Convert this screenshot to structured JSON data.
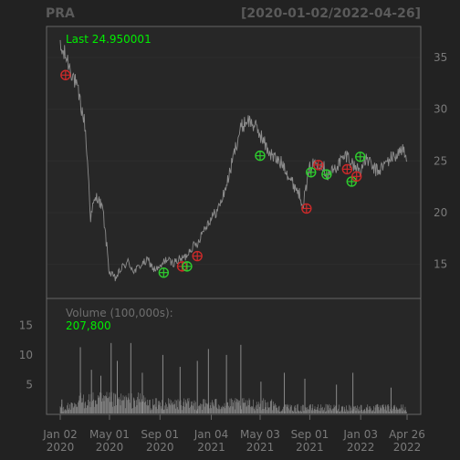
{
  "header": {
    "symbol": "PRA",
    "date_range": "[2020-01-02/2022-04-26]"
  },
  "colors": {
    "background": "#222222",
    "panel": "#272727",
    "border": "#666666",
    "price_line": "#8c8c8c",
    "volume_bars": "#8a8a8a",
    "label_green": "#00ee00",
    "marker_green": "#2ecc2e",
    "marker_red": "#cc2a2a"
  },
  "chart_data": {
    "type": "line",
    "title": "PRA",
    "subtitle": "[2020-01-02/2022-04-26]",
    "price_panel": {
      "y_ticks": [
        15,
        20,
        25,
        30,
        35
      ],
      "ylim": [
        11.7,
        38.0
      ],
      "last_label": "Last 24.950001",
      "series": {
        "name": "Close",
        "x": [
          "2020-01-02",
          "2020-01-17",
          "2020-02-03",
          "2020-02-18",
          "2020-03-02",
          "2020-03-10",
          "2020-03-16",
          "2020-03-23",
          "2020-04-01",
          "2020-04-15",
          "2020-05-01",
          "2020-05-15",
          "2020-06-01",
          "2020-06-15",
          "2020-07-01",
          "2020-07-15",
          "2020-08-03",
          "2020-08-17",
          "2020-09-01",
          "2020-09-15",
          "2020-10-01",
          "2020-10-15",
          "2020-11-02",
          "2020-11-16",
          "2020-12-01",
          "2020-12-15",
          "2021-01-04",
          "2021-01-19",
          "2021-02-01",
          "2021-02-16",
          "2021-03-01",
          "2021-03-15",
          "2021-04-01",
          "2021-04-15",
          "2021-05-03",
          "2021-05-17",
          "2021-06-01",
          "2021-06-15",
          "2021-07-01",
          "2021-07-15",
          "2021-08-02",
          "2021-08-16",
          "2021-09-01",
          "2021-09-15",
          "2021-10-01",
          "2021-10-15",
          "2021-11-01",
          "2021-11-15",
          "2021-12-01",
          "2021-12-15",
          "2022-01-03",
          "2022-01-18",
          "2022-02-01",
          "2022-02-15",
          "2022-03-01",
          "2022-03-15",
          "2022-04-01",
          "2022-04-14",
          "2022-04-26"
        ],
        "values": [
          35.8,
          35.0,
          33.2,
          31.0,
          28.5,
          24.0,
          19.5,
          20.8,
          21.6,
          20.2,
          14.2,
          13.6,
          14.7,
          15.2,
          14.3,
          14.9,
          15.4,
          14.5,
          14.6,
          15.5,
          15.1,
          15.4,
          15.7,
          16.6,
          17.0,
          18.3,
          19.5,
          20.2,
          21.5,
          23.5,
          25.8,
          28.0,
          29.0,
          28.6,
          27.6,
          26.4,
          25.5,
          25.0,
          24.6,
          23.2,
          22.2,
          20.9,
          24.3,
          24.9,
          24.7,
          23.6,
          24.2,
          25.0,
          25.6,
          24.6,
          24.1,
          25.3,
          24.3,
          24.0,
          24.6,
          25.2,
          25.6,
          26.2,
          24.95
        ]
      },
      "signals": [
        {
          "date": "2020-01-15",
          "price": 33.3,
          "type": "red"
        },
        {
          "date": "2020-09-10",
          "price": 14.2,
          "type": "green"
        },
        {
          "date": "2020-10-25",
          "price": 14.8,
          "type": "red"
        },
        {
          "date": "2020-11-06",
          "price": 14.8,
          "type": "green"
        },
        {
          "date": "2020-12-01",
          "price": 15.8,
          "type": "red"
        },
        {
          "date": "2021-05-03",
          "price": 25.5,
          "type": "green"
        },
        {
          "date": "2021-08-24",
          "price": 20.4,
          "type": "red"
        },
        {
          "date": "2021-09-04",
          "price": 23.9,
          "type": "green"
        },
        {
          "date": "2021-09-22",
          "price": 24.6,
          "type": "red"
        },
        {
          "date": "2021-10-12",
          "price": 23.7,
          "type": "green"
        },
        {
          "date": "2021-12-01",
          "price": 24.2,
          "type": "red"
        },
        {
          "date": "2021-12-12",
          "price": 23.0,
          "type": "green"
        },
        {
          "date": "2021-12-24",
          "price": 23.5,
          "type": "red"
        },
        {
          "date": "2022-01-02",
          "price": 25.4,
          "type": "green"
        }
      ]
    },
    "volume_panel": {
      "title": "Volume (100,000s):",
      "last_value": "207,800",
      "unit": "100,000s",
      "y_ticks": [
        5,
        10,
        15
      ],
      "ylim": [
        0,
        19.5
      ],
      "spikes": [
        {
          "date": "2020-01-06",
          "value": 2.5
        },
        {
          "date": "2020-02-20",
          "value": 11.3
        },
        {
          "date": "2020-03-18",
          "value": 7.5
        },
        {
          "date": "2020-04-10",
          "value": 6.5
        },
        {
          "date": "2020-05-05",
          "value": 12.0
        },
        {
          "date": "2020-05-20",
          "value": 9.0
        },
        {
          "date": "2020-06-22",
          "value": 12.0
        },
        {
          "date": "2020-07-20",
          "value": 7.0
        },
        {
          "date": "2020-09-08",
          "value": 10.0
        },
        {
          "date": "2020-10-20",
          "value": 8.0
        },
        {
          "date": "2020-12-01",
          "value": 9.0
        },
        {
          "date": "2020-12-28",
          "value": 11.0
        },
        {
          "date": "2021-02-10",
          "value": 10.0
        },
        {
          "date": "2021-03-17",
          "value": 11.7
        },
        {
          "date": "2021-05-05",
          "value": 5.5
        },
        {
          "date": "2021-07-01",
          "value": 7.0
        },
        {
          "date": "2021-08-20",
          "value": 6.0
        },
        {
          "date": "2021-11-05",
          "value": 5.0
        },
        {
          "date": "2021-12-15",
          "value": 7.0
        },
        {
          "date": "2022-03-18",
          "value": 4.5
        }
      ]
    },
    "x_ticks": [
      {
        "date": "2020-01-02",
        "line1": "Jan 02",
        "line2": "2020"
      },
      {
        "date": "2020-05-01",
        "line1": "May 01",
        "line2": "2020"
      },
      {
        "date": "2020-09-01",
        "line1": "Sep 01",
        "line2": "2020"
      },
      {
        "date": "2021-01-04",
        "line1": "Jan 04",
        "line2": "2021"
      },
      {
        "date": "2021-05-03",
        "line1": "May 03",
        "line2": "2021"
      },
      {
        "date": "2021-09-01",
        "line1": "Sep 01",
        "line2": "2021"
      },
      {
        "date": "2022-01-03",
        "line1": "Jan 03",
        "line2": "2022"
      },
      {
        "date": "2022-04-26",
        "line1": "Apr 26",
        "line2": "2022"
      }
    ]
  }
}
